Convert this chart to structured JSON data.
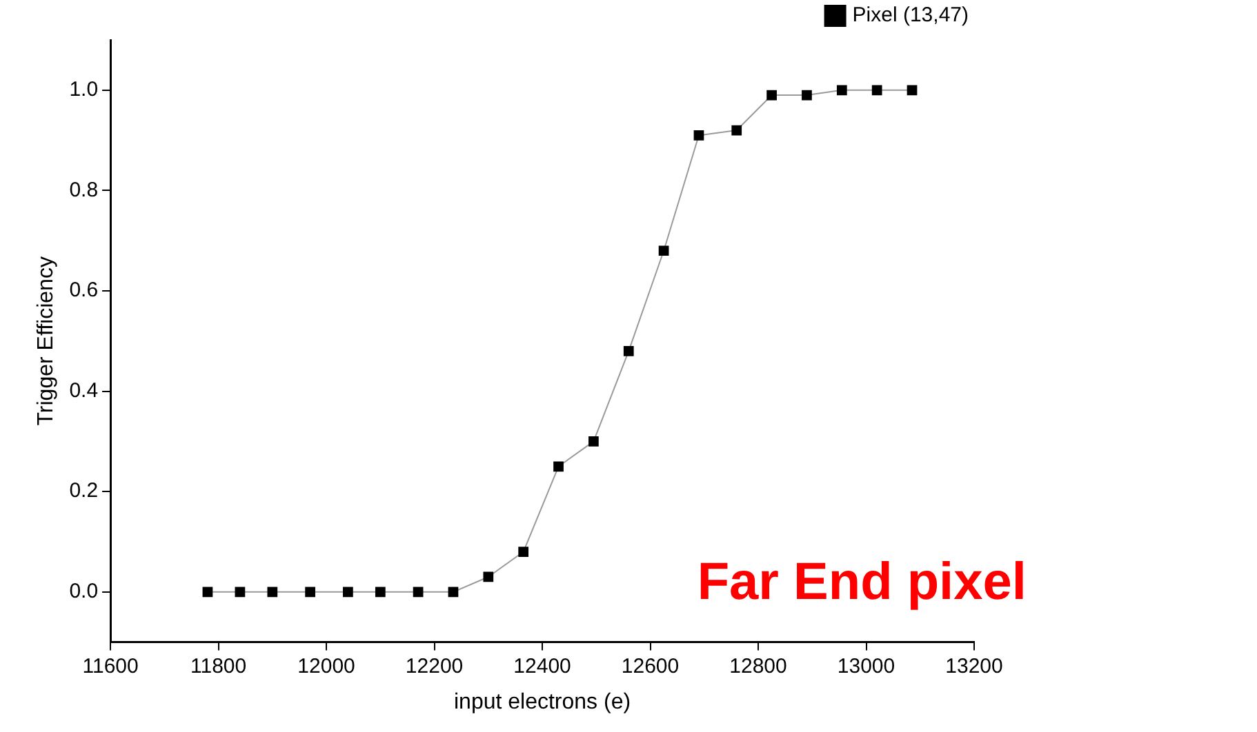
{
  "chart_data": {
    "type": "line",
    "xlabel": "input electrons (e)",
    "ylabel": "Trigger Efficiency",
    "x": [
      11780,
      11840,
      11900,
      11970,
      12040,
      12100,
      12170,
      12235,
      12300,
      12365,
      12430,
      12495,
      12560,
      12625,
      12690,
      12760,
      12825,
      12890,
      12955,
      13020,
      13085
    ],
    "series": [
      {
        "name": "Pixel (13,47)",
        "color": "#000000",
        "values": [
          0,
          0,
          0,
          0,
          0,
          0,
          0,
          0,
          0.03,
          0.08,
          0.25,
          0.3,
          0.48,
          0.68,
          0.91,
          0.92,
          0.99,
          0.99,
          1.0,
          1.0,
          1.0
        ]
      }
    ],
    "xlim": [
      11600,
      13200
    ],
    "xticks": [
      11600,
      11800,
      12000,
      12200,
      12400,
      12600,
      12800,
      13000,
      13200
    ],
    "ylim": [
      -0.1,
      1.1
    ],
    "yticks": [
      {
        "value": 0,
        "label": "0.0"
      },
      {
        "value": 0.2,
        "label": "0.2"
      },
      {
        "value": 0.4,
        "label": "0.4"
      },
      {
        "value": 0.6,
        "label": "0.6"
      },
      {
        "value": 0.8,
        "label": "0.8"
      },
      {
        "value": 1,
        "label": "1.0"
      }
    ],
    "grid": false,
    "legend": "top right",
    "marker": "square",
    "line_style": "solid",
    "annotations": [
      "Far End pixel"
    ]
  }
}
